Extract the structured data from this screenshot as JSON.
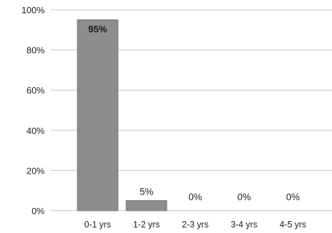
{
  "chart_data": {
    "type": "bar",
    "title": "",
    "xlabel": "",
    "ylabel": "",
    "categories": [
      "0-1 yrs",
      "1-2 yrs",
      "2-3 yrs",
      "3-4 yrs",
      "4-5 yrs"
    ],
    "values": [
      95,
      5,
      0,
      0,
      0
    ],
    "data_labels": [
      "95%",
      "5%",
      "0%",
      "0%",
      "0%"
    ],
    "ylim": [
      0,
      100
    ],
    "y_ticks": [
      0,
      20,
      40,
      60,
      80,
      100
    ],
    "y_tick_labels": [
      "0%",
      "20%",
      "40%",
      "60%",
      "80%",
      "100%"
    ],
    "grid": true,
    "legend": "none",
    "colors": {
      "bar_fill": "#8d8d8d",
      "bar_stroke": "#6e6e6e",
      "grid": "#c6c6c6",
      "text": "#222222"
    }
  }
}
